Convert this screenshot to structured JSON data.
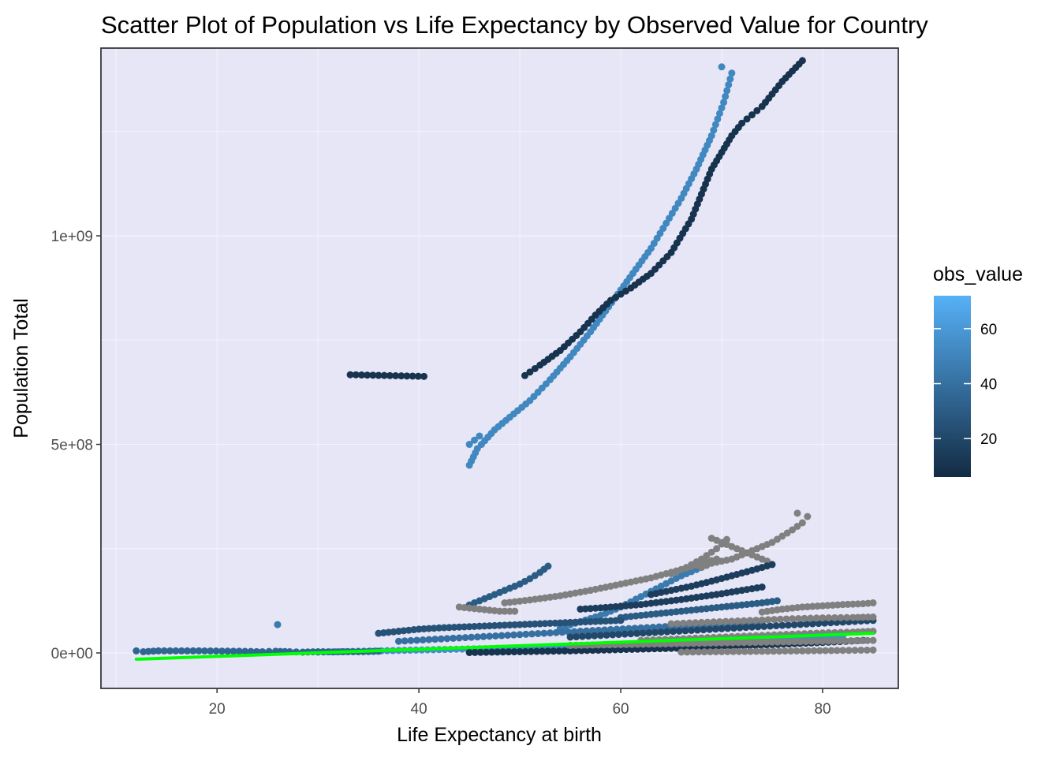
{
  "chart_data": {
    "type": "scatter",
    "title": "Scatter Plot of Population vs Life Expectancy by Observed Value for Country",
    "xlabel": "Life Expectancy at birth",
    "ylabel": "Population Total",
    "xlim": [
      8.5,
      87.5
    ],
    "ylim": [
      -85000000,
      1450000000
    ],
    "x_ticks": [
      20,
      40,
      60,
      80
    ],
    "x_tick_labels": [
      "20",
      "40",
      "60",
      "80"
    ],
    "y_ticks": [
      0,
      500000000,
      1000000000
    ],
    "y_tick_labels": [
      "0e+00",
      "5e+08",
      "1e+09"
    ],
    "grid": true,
    "panel_background": "#e6e6f7",
    "missing_value_color": "#808080",
    "legend": {
      "title": "obs_value",
      "position": "right",
      "type": "colorbar",
      "range": [
        6,
        72
      ],
      "ticks": [
        20,
        40,
        60
      ],
      "tick_labels": [
        "20",
        "40",
        "60"
      ],
      "low_color": "#132b43",
      "high_color": "#56b1f7"
    },
    "trend_line": {
      "color": "#00ff00",
      "x": [
        12,
        85
      ],
      "y": [
        -15000000,
        47000000
      ]
    },
    "series": [
      {
        "color_value": 52,
        "x": [
          45.0,
          45.4,
          45.8,
          46.2,
          47.5,
          49,
          51,
          53,
          55,
          57,
          58.5,
          60,
          61.5,
          63,
          64.5,
          66,
          67.5,
          69,
          70.2,
          71
        ],
        "y": [
          450000000,
          470000000,
          490000000,
          500000000,
          535000000,
          565000000,
          605000000,
          655000000,
          710000000,
          770000000,
          820000000,
          870000000,
          920000000,
          970000000,
          1030000000,
          1090000000,
          1160000000,
          1240000000,
          1320000000,
          1390000000
        ]
      },
      {
        "color_value": 52,
        "x": [
          45.0,
          45.5,
          46.0
        ],
        "y": [
          500000000,
          510000000,
          520000000
        ]
      },
      {
        "color_value": 52,
        "x": [
          70.0
        ],
        "y": [
          1405000000
        ]
      },
      {
        "color_value": 10,
        "x": [
          50.5,
          52,
          54,
          56,
          57.5,
          59,
          61,
          63,
          65,
          67,
          68,
          69,
          70,
          71,
          72,
          73,
          74,
          75,
          76,
          77,
          78
        ],
        "y": [
          665000000,
          690000000,
          725000000,
          770000000,
          810000000,
          845000000,
          875000000,
          910000000,
          960000000,
          1040000000,
          1100000000,
          1160000000,
          1200000000,
          1240000000,
          1270000000,
          1290000000,
          1310000000,
          1340000000,
          1370000000,
          1395000000,
          1420000000
        ]
      },
      {
        "color_value": 10,
        "x": [
          33.2,
          40.5
        ],
        "y": [
          667000000,
          663000000
        ]
      },
      {
        "color_value": 30,
        "x": [
          45,
          46,
          47,
          48,
          49,
          50,
          51,
          52,
          52.8
        ],
        "y": [
          115000000,
          125000000,
          135000000,
          145000000,
          155000000,
          165000000,
          178000000,
          193000000,
          208000000
        ]
      },
      {
        "color_value": 45,
        "x": [
          54,
          56,
          58,
          60,
          62,
          64,
          66,
          68.5
        ],
        "y": [
          60000000,
          75000000,
          90000000,
          110000000,
          135000000,
          160000000,
          185000000,
          210000000
        ]
      },
      {
        "color_value": null,
        "x": [
          44,
          46,
          48,
          49.5
        ],
        "y": [
          110000000,
          105000000,
          100000000,
          100000000
        ]
      },
      {
        "color_value": null,
        "x": [
          48.5,
          51,
          54,
          57,
          60,
          63,
          66,
          69.5
        ],
        "y": [
          120000000,
          127000000,
          137000000,
          150000000,
          165000000,
          180000000,
          200000000,
          225000000
        ]
      },
      {
        "color_value": null,
        "x": [
          65,
          66.5,
          68,
          69.5,
          70.5
        ],
        "y": [
          190000000,
          205000000,
          225000000,
          250000000,
          272000000
        ]
      },
      {
        "color_value": null,
        "x": [
          68,
          69,
          71,
          73,
          75,
          76,
          77,
          78,
          78.5
        ],
        "y": [
          205000000,
          215000000,
          225000000,
          245000000,
          265000000,
          280000000,
          295000000,
          312000000,
          327000000
        ]
      },
      {
        "color_value": null,
        "x": [
          69,
          74.5
        ],
        "y": [
          275000000,
          220000000
        ]
      },
      {
        "color_value": null,
        "x": [
          77.5
        ],
        "y": [
          335000000
        ]
      },
      {
        "color_value": 15,
        "x": [
          63,
          65,
          67,
          69,
          71,
          73,
          75
        ],
        "y": [
          140000000,
          150000000,
          160000000,
          172000000,
          185000000,
          198000000,
          212000000
        ]
      },
      {
        "color_value": 15,
        "x": [
          56,
          58,
          60,
          62,
          64,
          66,
          68,
          70,
          72,
          74
        ],
        "y": [
          105000000,
          108000000,
          112000000,
          116000000,
          122000000,
          128000000,
          135000000,
          142000000,
          150000000,
          158000000
        ]
      },
      {
        "color_value": null,
        "x": [
          74,
          76,
          78,
          80,
          82,
          84,
          85
        ],
        "y": [
          98000000,
          105000000,
          110000000,
          113000000,
          116000000,
          118000000,
          120000000
        ]
      },
      {
        "color_value": 30,
        "x": [
          60,
          62,
          64,
          66,
          68,
          70,
          72,
          74,
          75.5
        ],
        "y": [
          85000000,
          90000000,
          95000000,
          100000000,
          105000000,
          110000000,
          115000000,
          120000000,
          125000000
        ]
      },
      {
        "color_value": 25,
        "x": [
          36,
          38,
          40,
          42,
          44,
          46,
          48,
          50,
          52,
          54,
          56,
          58,
          60
        ],
        "y": [
          47000000,
          52000000,
          57000000,
          60000000,
          62000000,
          64000000,
          66000000,
          68000000,
          70000000,
          72000000,
          74000000,
          76000000,
          78000000
        ]
      },
      {
        "color_value": 40,
        "x": [
          38,
          41,
          44,
          47,
          50,
          53,
          56,
          59,
          62,
          65,
          68,
          71,
          74
        ],
        "y": [
          28000000,
          32000000,
          36000000,
          40000000,
          44000000,
          48000000,
          52000000,
          56000000,
          60000000,
          64000000,
          68000000,
          72000000,
          76000000
        ]
      },
      {
        "color_value": 20,
        "x": [
          55,
          58,
          61,
          64,
          67,
          70,
          73,
          76,
          79,
          82,
          85
        ],
        "y": [
          38000000,
          42000000,
          46000000,
          50000000,
          54000000,
          58000000,
          62000000,
          66000000,
          70000000,
          74000000,
          78000000
        ]
      },
      {
        "color_value": null,
        "x": [
          65,
          68,
          71,
          74,
          77,
          80,
          83,
          85
        ],
        "y": [
          70000000,
          73000000,
          76000000,
          79000000,
          82000000,
          84000000,
          85000000,
          86000000
        ]
      },
      {
        "color_value": null,
        "x": [
          62,
          65,
          68,
          71,
          74,
          77,
          80,
          83,
          85
        ],
        "y": [
          30000000,
          33000000,
          36000000,
          39000000,
          42000000,
          45000000,
          48000000,
          50000000,
          52000000
        ]
      },
      {
        "color_value": 55,
        "x": [
          30,
          34,
          38,
          42,
          46,
          50,
          54,
          58,
          62,
          66,
          70,
          74,
          78,
          82
        ],
        "y": [
          2000000,
          4000000,
          6000000,
          8000000,
          10000000,
          12000000,
          15000000,
          18000000,
          22000000,
          26000000,
          30000000,
          34000000,
          38000000,
          42000000
        ]
      },
      {
        "color_value": 10,
        "x": [
          45,
          50,
          55,
          60,
          65,
          70,
          75,
          80,
          84
        ],
        "y": [
          1000000,
          3000000,
          5000000,
          8000000,
          11000000,
          15000000,
          20000000,
          25000000,
          30000000
        ]
      },
      {
        "color_value": null,
        "x": [
          66,
          70,
          74,
          78,
          82,
          85
        ],
        "y": [
          2000000,
          3000000,
          4000000,
          5000000,
          6000000,
          7000000
        ]
      },
      {
        "color_value": 35,
        "x": [
          12,
          12.7,
          14.2,
          18.2,
          22.2,
          24.5,
          25.8,
          27.2,
          28.5,
          30,
          31.5,
          33,
          34.5,
          36
        ],
        "y": [
          5000000,
          3000000,
          5000000,
          5000000,
          4000000,
          3000000,
          4000000,
          3000000,
          2000000,
          3000000,
          2500000,
          3000000,
          3000000,
          4000000
        ]
      },
      {
        "color_value": 45,
        "x": [
          26
        ],
        "y": [
          68000000
        ]
      },
      {
        "color_value": null,
        "x": [
          55,
          60,
          65,
          70,
          75,
          80,
          85
        ],
        "y": [
          18000000,
          20000000,
          22000000,
          24000000,
          26000000,
          28000000,
          30000000
        ]
      }
    ]
  }
}
